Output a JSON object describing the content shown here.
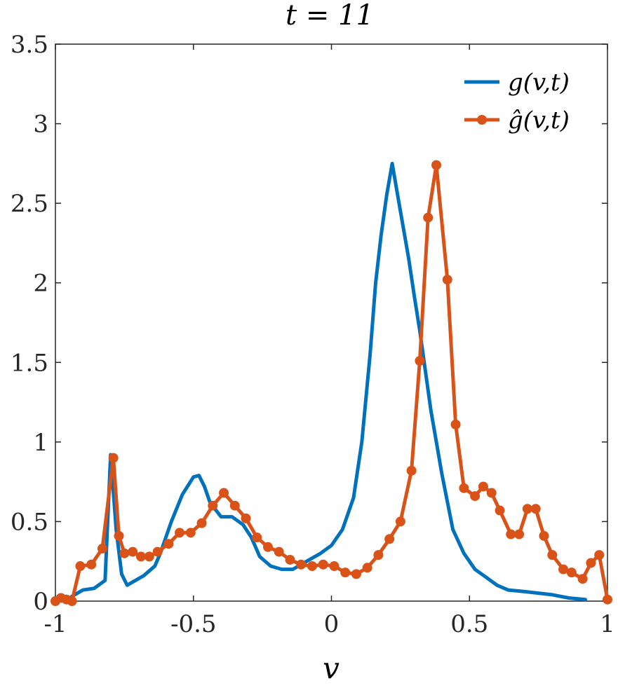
{
  "chart_data": {
    "type": "line",
    "title": "t = 11",
    "xlabel": "v",
    "ylabel": "",
    "xlim": [
      -1,
      1
    ],
    "ylim": [
      0,
      3.5
    ],
    "xticks": [
      -1,
      -0.5,
      0,
      0.5,
      1
    ],
    "xtick_labels": [
      "-1",
      "-0.5",
      "0",
      "0.5",
      "1"
    ],
    "yticks": [
      0,
      0.5,
      1,
      1.5,
      2,
      2.5,
      3,
      3.5
    ],
    "ytick_labels": [
      "0",
      "0.5",
      "1",
      "1.5",
      "2",
      "2.5",
      "3",
      "3.5"
    ],
    "grid": false,
    "legend_position": "top-right",
    "series": [
      {
        "name": "g(v,t)",
        "color": "#0072BD",
        "marker": "none",
        "x": [
          -0.96,
          -0.94,
          -0.9,
          -0.86,
          -0.82,
          -0.8,
          -0.78,
          -0.76,
          -0.74,
          -0.72,
          -0.68,
          -0.64,
          -0.62,
          -0.58,
          -0.54,
          -0.5,
          -0.48,
          -0.46,
          -0.44,
          -0.4,
          -0.36,
          -0.32,
          -0.29,
          -0.26,
          -0.22,
          -0.18,
          -0.14,
          -0.12,
          -0.08,
          -0.04,
          0.0,
          0.04,
          0.08,
          0.11,
          0.14,
          0.16,
          0.18,
          0.2,
          0.22,
          0.24,
          0.26,
          0.28,
          0.3,
          0.32,
          0.34,
          0.36,
          0.4,
          0.44,
          0.48,
          0.52,
          0.56,
          0.6,
          0.64,
          0.7,
          0.8,
          0.86,
          0.92
        ],
        "y": [
          0.0,
          0.03,
          0.07,
          0.08,
          0.13,
          0.92,
          0.45,
          0.17,
          0.1,
          0.12,
          0.16,
          0.22,
          0.3,
          0.5,
          0.67,
          0.78,
          0.79,
          0.72,
          0.62,
          0.53,
          0.53,
          0.48,
          0.4,
          0.28,
          0.22,
          0.2,
          0.2,
          0.22,
          0.26,
          0.3,
          0.35,
          0.45,
          0.65,
          1.0,
          1.55,
          2.0,
          2.3,
          2.55,
          2.75,
          2.55,
          2.35,
          2.15,
          1.92,
          1.7,
          1.45,
          1.2,
          0.8,
          0.45,
          0.3,
          0.2,
          0.15,
          0.1,
          0.07,
          0.06,
          0.04,
          0.02,
          0.01
        ]
      },
      {
        "name": "ĝ(v,t)",
        "color": "#D95319",
        "marker": "circle",
        "x": [
          -1.0,
          -0.98,
          -0.96,
          -0.94,
          -0.91,
          -0.87,
          -0.83,
          -0.79,
          -0.77,
          -0.75,
          -0.72,
          -0.69,
          -0.66,
          -0.63,
          -0.59,
          -0.55,
          -0.51,
          -0.47,
          -0.43,
          -0.39,
          -0.35,
          -0.31,
          -0.27,
          -0.23,
          -0.19,
          -0.15,
          -0.11,
          -0.07,
          -0.03,
          0.01,
          0.05,
          0.09,
          0.13,
          0.17,
          0.21,
          0.25,
          0.29,
          0.32,
          0.35,
          0.38,
          0.42,
          0.45,
          0.48,
          0.52,
          0.55,
          0.58,
          0.61,
          0.65,
          0.68,
          0.71,
          0.74,
          0.77,
          0.8,
          0.84,
          0.87,
          0.91,
          0.94,
          0.97,
          1.0
        ],
        "y": [
          0.0,
          0.02,
          0.01,
          0.0,
          0.22,
          0.23,
          0.33,
          0.9,
          0.41,
          0.3,
          0.31,
          0.28,
          0.28,
          0.31,
          0.36,
          0.43,
          0.43,
          0.49,
          0.6,
          0.68,
          0.6,
          0.52,
          0.4,
          0.34,
          0.31,
          0.26,
          0.23,
          0.22,
          0.23,
          0.22,
          0.18,
          0.17,
          0.21,
          0.29,
          0.39,
          0.5,
          0.82,
          1.51,
          2.41,
          2.74,
          2.02,
          1.11,
          0.71,
          0.66,
          0.72,
          0.68,
          0.57,
          0.42,
          0.42,
          0.58,
          0.58,
          0.41,
          0.29,
          0.2,
          0.18,
          0.14,
          0.24,
          0.29,
          0.01
        ]
      }
    ]
  }
}
